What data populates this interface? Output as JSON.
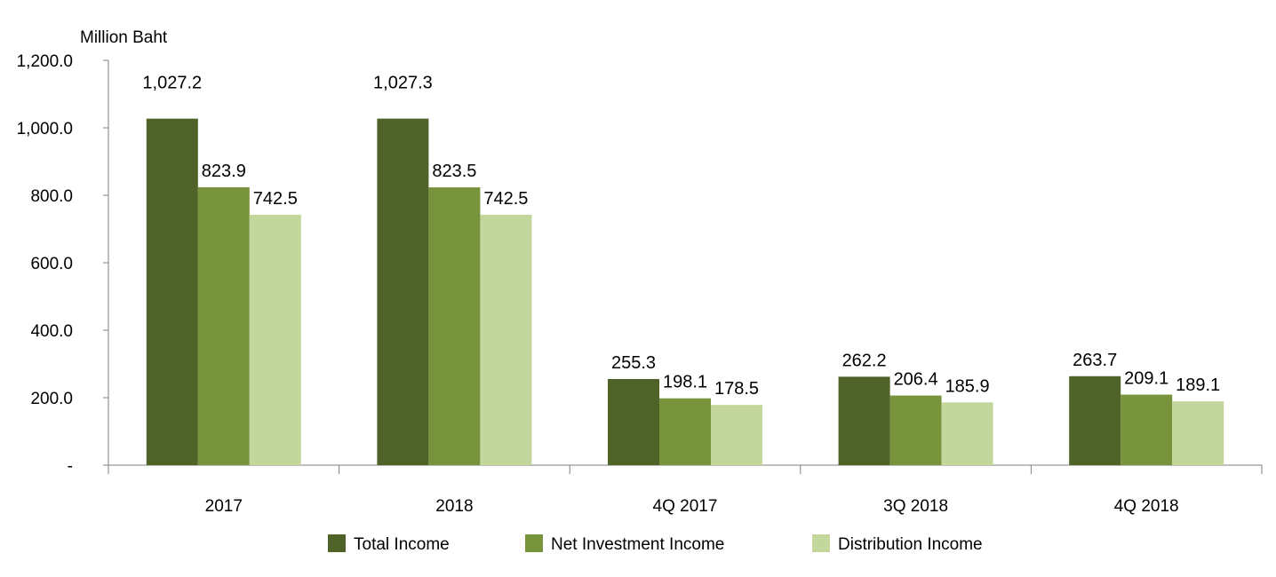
{
  "chart_data": {
    "type": "bar",
    "ylabel": "Million Baht",
    "categories": [
      "2017",
      "2018",
      "4Q 2017",
      "3Q 2018",
      "4Q 2018"
    ],
    "series": [
      {
        "name": "Total Income",
        "color": "#4f6228",
        "values": [
          1027.2,
          1027.3,
          255.3,
          262.2,
          263.7
        ],
        "labels": [
          "1,027.2",
          "1,027.3",
          "255.3",
          "262.2",
          "263.7"
        ]
      },
      {
        "name": "Net Investment Income",
        "color": "#77933c",
        "values": [
          823.9,
          823.5,
          198.1,
          206.4,
          209.1
        ],
        "labels": [
          "823.9",
          "823.5",
          "198.1",
          "206.4",
          "209.1"
        ]
      },
      {
        "name": "Distribution Income",
        "color": "#c3d69b",
        "values": [
          742.5,
          742.5,
          178.5,
          185.9,
          189.1
        ],
        "labels": [
          "742.5",
          "742.5",
          "178.5",
          "185.9",
          "189.1"
        ]
      }
    ],
    "ylim": [
      0,
      1200
    ],
    "yticks": [
      0,
      200,
      400,
      600,
      800,
      1000,
      1200
    ],
    "ytick_labels": [
      "-",
      "200.0",
      "400.0",
      "600.0",
      "800.0",
      "1,000.0",
      "1,200.0"
    ],
    "grid": false,
    "legend_position": "bottom"
  }
}
